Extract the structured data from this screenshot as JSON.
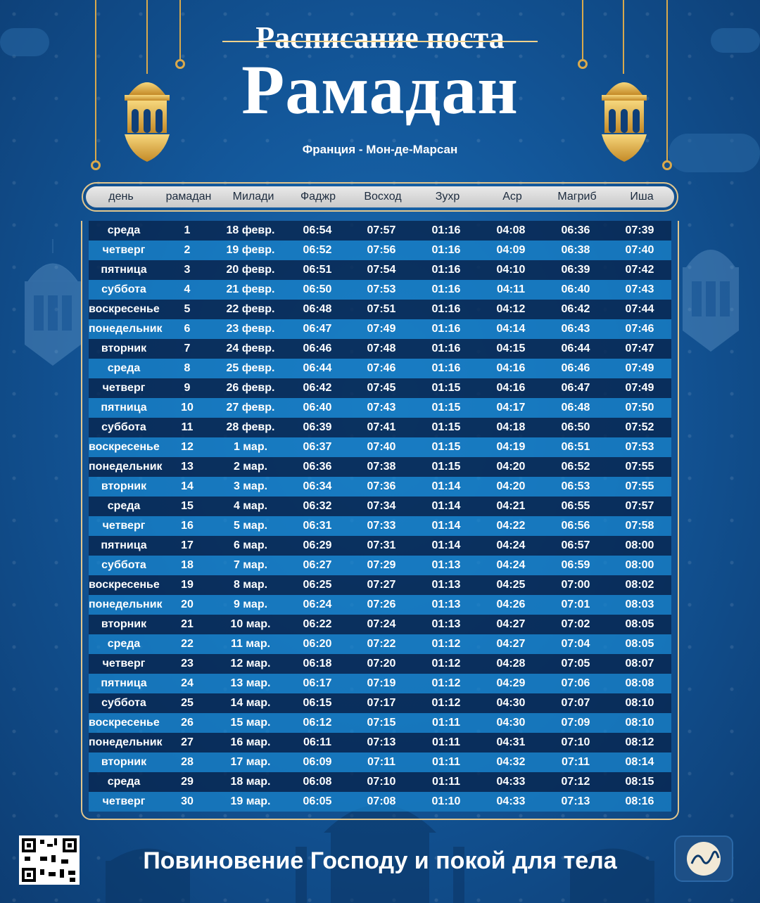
{
  "header": {
    "subtitle": "Расписание поста",
    "title": "Рамадан",
    "location": "Франция - Мон-де-Марсан"
  },
  "table": {
    "columns": [
      "день",
      "рамадан",
      "Милади",
      "Фаджр",
      "Восход",
      "Зухр",
      "Аср",
      "Магриб",
      "Иша"
    ],
    "rows": [
      [
        "среда",
        "1",
        "18 февр.",
        "06:54",
        "07:57",
        "01:16",
        "04:08",
        "06:36",
        "07:39"
      ],
      [
        "четверг",
        "2",
        "19 февр.",
        "06:52",
        "07:56",
        "01:16",
        "04:09",
        "06:38",
        "07:40"
      ],
      [
        "пятница",
        "3",
        "20 февр.",
        "06:51",
        "07:54",
        "01:16",
        "04:10",
        "06:39",
        "07:42"
      ],
      [
        "суббота",
        "4",
        "21 февр.",
        "06:50",
        "07:53",
        "01:16",
        "04:11",
        "06:40",
        "07:43"
      ],
      [
        "воскресенье",
        "5",
        "22 февр.",
        "06:48",
        "07:51",
        "01:16",
        "04:12",
        "06:42",
        "07:44"
      ],
      [
        "понедельник",
        "6",
        "23 февр.",
        "06:47",
        "07:49",
        "01:16",
        "04:14",
        "06:43",
        "07:46"
      ],
      [
        "вторник",
        "7",
        "24 февр.",
        "06:46",
        "07:48",
        "01:16",
        "04:15",
        "06:44",
        "07:47"
      ],
      [
        "среда",
        "8",
        "25 февр.",
        "06:44",
        "07:46",
        "01:16",
        "04:16",
        "06:46",
        "07:49"
      ],
      [
        "четверг",
        "9",
        "26 февр.",
        "06:42",
        "07:45",
        "01:15",
        "04:16",
        "06:47",
        "07:49"
      ],
      [
        "пятница",
        "10",
        "27 февр.",
        "06:40",
        "07:43",
        "01:15",
        "04:17",
        "06:48",
        "07:50"
      ],
      [
        "суббота",
        "11",
        "28 февр.",
        "06:39",
        "07:41",
        "01:15",
        "04:18",
        "06:50",
        "07:52"
      ],
      [
        "воскресенье",
        "12",
        "1 мар.",
        "06:37",
        "07:40",
        "01:15",
        "04:19",
        "06:51",
        "07:53"
      ],
      [
        "понедельник",
        "13",
        "2 мар.",
        "06:36",
        "07:38",
        "01:15",
        "04:20",
        "06:52",
        "07:55"
      ],
      [
        "вторник",
        "14",
        "3 мар.",
        "06:34",
        "07:36",
        "01:14",
        "04:20",
        "06:53",
        "07:55"
      ],
      [
        "среда",
        "15",
        "4 мар.",
        "06:32",
        "07:34",
        "01:14",
        "04:21",
        "06:55",
        "07:57"
      ],
      [
        "четверг",
        "16",
        "5 мар.",
        "06:31",
        "07:33",
        "01:14",
        "04:22",
        "06:56",
        "07:58"
      ],
      [
        "пятница",
        "17",
        "6 мар.",
        "06:29",
        "07:31",
        "01:14",
        "04:24",
        "06:57",
        "08:00"
      ],
      [
        "суббота",
        "18",
        "7 мар.",
        "06:27",
        "07:29",
        "01:13",
        "04:24",
        "06:59",
        "08:00"
      ],
      [
        "воскресенье",
        "19",
        "8 мар.",
        "06:25",
        "07:27",
        "01:13",
        "04:25",
        "07:00",
        "08:02"
      ],
      [
        "понедельник",
        "20",
        "9 мар.",
        "06:24",
        "07:26",
        "01:13",
        "04:26",
        "07:01",
        "08:03"
      ],
      [
        "вторник",
        "21",
        "10 мар.",
        "06:22",
        "07:24",
        "01:13",
        "04:27",
        "07:02",
        "08:05"
      ],
      [
        "среда",
        "22",
        "11 мар.",
        "06:20",
        "07:22",
        "01:12",
        "04:27",
        "07:04",
        "08:05"
      ],
      [
        "четверг",
        "23",
        "12 мар.",
        "06:18",
        "07:20",
        "01:12",
        "04:28",
        "07:05",
        "08:07"
      ],
      [
        "пятница",
        "24",
        "13 мар.",
        "06:17",
        "07:19",
        "01:12",
        "04:29",
        "07:06",
        "08:08"
      ],
      [
        "суббота",
        "25",
        "14 мар.",
        "06:15",
        "07:17",
        "01:12",
        "04:30",
        "07:07",
        "08:10"
      ],
      [
        "воскресенье",
        "26",
        "15 мар.",
        "06:12",
        "07:15",
        "01:11",
        "04:30",
        "07:09",
        "08:10"
      ],
      [
        "понедельник",
        "27",
        "16 мар.",
        "06:11",
        "07:13",
        "01:11",
        "04:31",
        "07:10",
        "08:12"
      ],
      [
        "вторник",
        "28",
        "17 мар.",
        "06:09",
        "07:11",
        "01:11",
        "04:32",
        "07:11",
        "08:14"
      ],
      [
        "среда",
        "29",
        "18 мар.",
        "06:08",
        "07:10",
        "01:11",
        "04:33",
        "07:12",
        "08:15"
      ],
      [
        "четверг",
        "30",
        "19 мар.",
        "06:05",
        "07:08",
        "01:10",
        "04:33",
        "07:13",
        "08:16"
      ]
    ]
  },
  "footer": {
    "tagline": "Повиновение Господу и покой для тела"
  },
  "colors": {
    "gold": "#d9a94c",
    "row_dark": "#082852",
    "row_light": "#1882c8"
  },
  "icons": [
    "lantern-icon",
    "qr-code-icon",
    "brand-logo-icon"
  ]
}
